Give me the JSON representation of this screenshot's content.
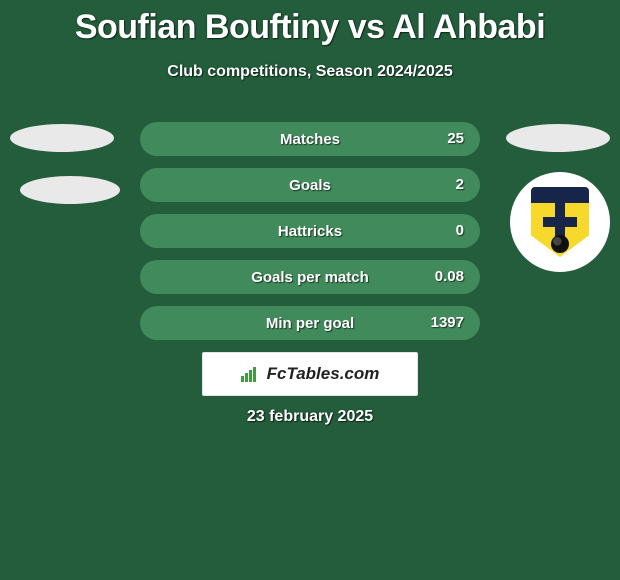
{
  "title": "Soufian Bouftiny vs Al Ahbabi",
  "subtitle": "Club competitions, Season 2024/2025",
  "brand_text": "FcTables.com",
  "date_text": "23 february 2025",
  "colors": {
    "background": "#235d3b",
    "row_bg": "#418a5b",
    "oval_bg": "#e9e9e9",
    "text_shadow": "rgba(0,0,0,0.55)"
  },
  "rows": [
    {
      "label": "Matches",
      "value": "25"
    },
    {
      "label": "Goals",
      "value": "2"
    },
    {
      "label": "Hattricks",
      "value": "0"
    },
    {
      "label": "Goals per match",
      "value": "0.08"
    },
    {
      "label": "Min per goal",
      "value": "1397"
    }
  ],
  "club": {
    "name": "NK Inter Zapresic",
    "shield_colors": {
      "top": "#17254a",
      "body": "#f7d92b",
      "cross": "#17254a"
    }
  },
  "side_ovals_visible": {
    "left1": true,
    "left2": true,
    "right1": true
  }
}
